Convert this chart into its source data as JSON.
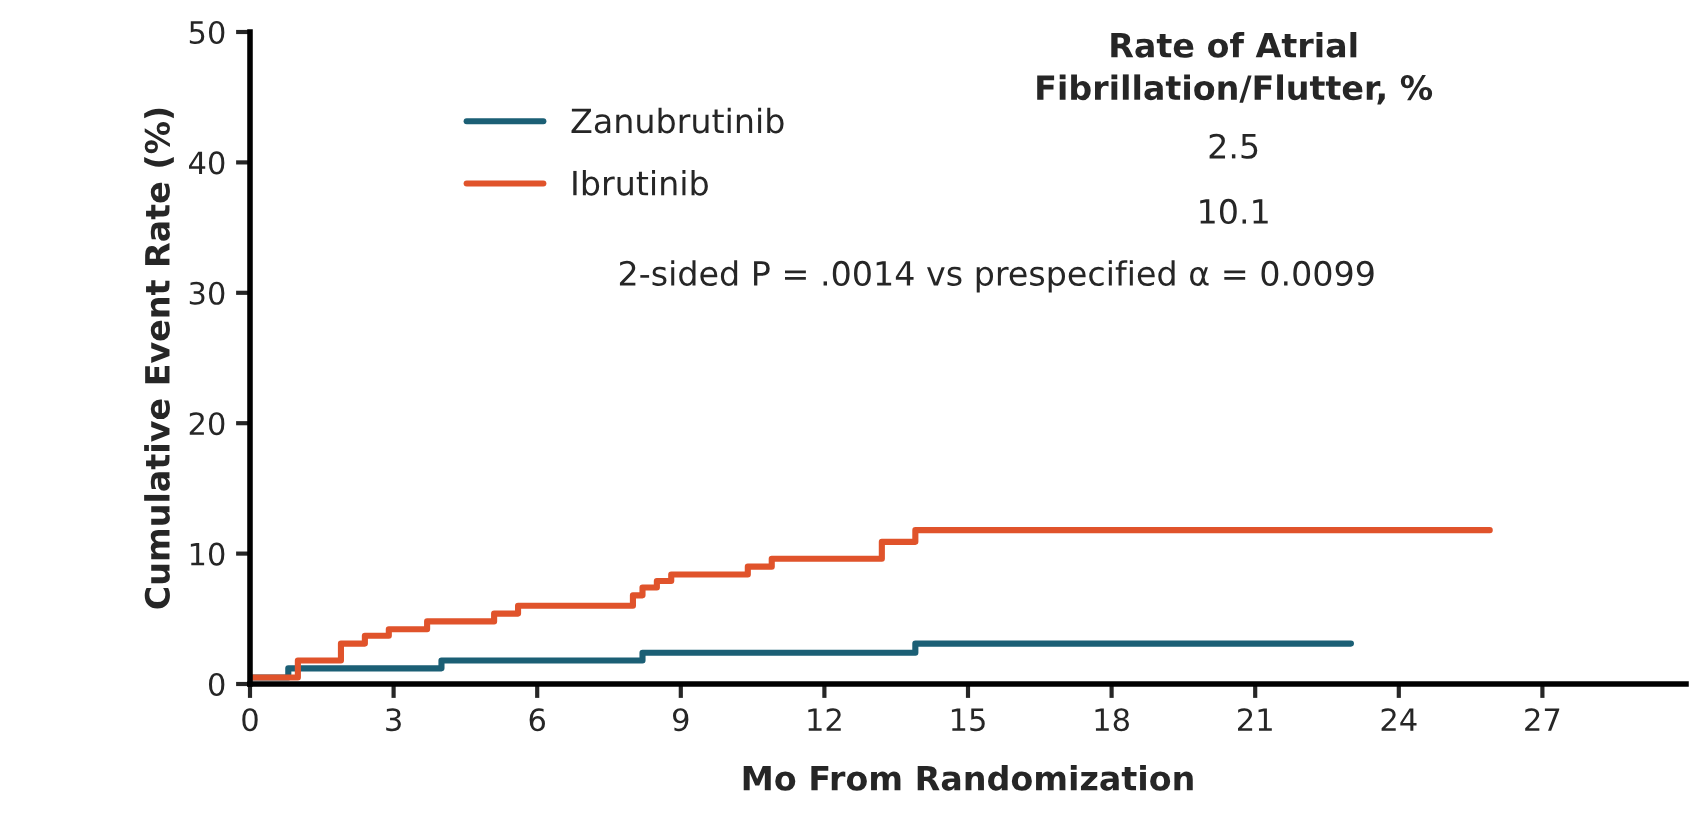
{
  "chart_data": {
    "type": "step",
    "xlabel": "Mo From Randomization",
    "ylabel": "Cumulative Event Rate (%)",
    "series": [
      {
        "name": "Zanubrutinib",
        "color": "#1b5f75",
        "x": [
          0,
          0.8,
          4.0,
          8.2,
          13.9,
          23.0
        ],
        "values": [
          0.5,
          1.2,
          1.8,
          2.4,
          3.1,
          3.1
        ]
      },
      {
        "name": "Ibrutinib",
        "color": "#e0532b",
        "x": [
          0,
          1.0,
          1.9,
          2.4,
          2.9,
          3.7,
          5.1,
          5.6,
          8.0,
          8.2,
          8.5,
          8.8,
          10.4,
          10.9,
          13.2,
          13.9,
          25.9
        ],
        "values": [
          0.5,
          1.8,
          3.1,
          3.7,
          4.2,
          4.8,
          5.4,
          6.0,
          6.8,
          7.4,
          7.9,
          8.4,
          9.0,
          9.6,
          10.9,
          11.8,
          11.8
        ]
      }
    ],
    "xlim": [
      0,
      30
    ],
    "xticks": [
      0,
      3,
      6,
      9,
      12,
      15,
      18,
      21,
      24,
      27
    ],
    "ylim": [
      0,
      50
    ],
    "yticks": [
      0,
      10,
      20,
      30,
      40,
      50
    ],
    "grid": false,
    "legend": "top",
    "line_style": "solid",
    "marker": "none",
    "annotations": [
      "Rate of Atrial\nFibrillation/Flutter, %",
      "2.5",
      "10.1",
      "2-sided P = .0014 vs prespecified α = 0.0099"
    ]
  }
}
